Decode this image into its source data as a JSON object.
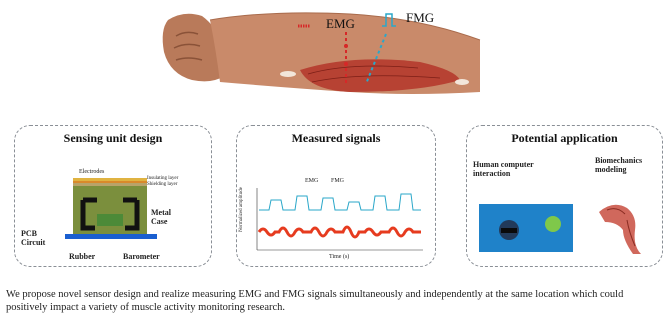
{
  "top_figure": {
    "emg_label": "EMG",
    "fmg_label": "FMG",
    "colors": {
      "emg": "#d62828",
      "fmg": "#2aa7c9",
      "muscle": "#c0392b",
      "skin": "#c98a6a"
    }
  },
  "panels": {
    "sensing": {
      "title": "Sensing unit design",
      "labels": {
        "electrodes": "Electrodes",
        "insulating_layer": "Insulating layer",
        "shielding_layer": "Shielding layer",
        "metal_case": "Metal\nCase",
        "pcb_circuit": "PCB\nCircuit",
        "rubber": "Rubber",
        "barometer": "Barometer"
      }
    },
    "signals": {
      "title": "Measured signals",
      "legend": {
        "emg": "EMG",
        "fmg": "FMG"
      },
      "ylabel": "Normalized amplitude",
      "xlabel": "Time (s)"
    },
    "application": {
      "title": "Potential application",
      "items": [
        {
          "label": "Human computer interaction"
        },
        {
          "label": "Biomechanics modeling"
        }
      ]
    }
  },
  "caption": "We propose novel sensor design and realize measuring EMG and FMG signals simultaneously and independently at the same location which could positively impact a variety of muscle activity monitoring research."
}
